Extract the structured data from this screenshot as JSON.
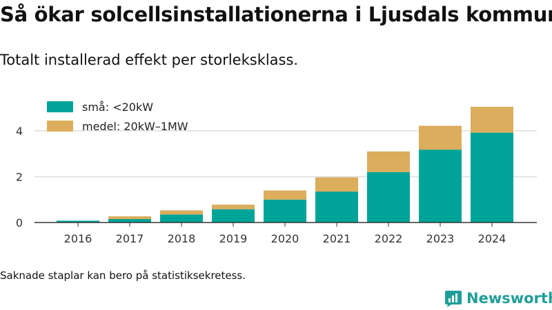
{
  "title": "Så ökar solcellsinstallationerna i Ljusdals kommun",
  "subtitle": "Totalt installerad effekt per storleksklass.",
  "note": "Saknade staplar kan bero på statistiksekretess.",
  "brand": {
    "name": "Newsworthy",
    "color": "#1f9e98",
    "icon": "newsworthy-logo-icon"
  },
  "chart_data": {
    "type": "bar",
    "stacked": true,
    "categories": [
      "2016",
      "2017",
      "2018",
      "2019",
      "2020",
      "2021",
      "2022",
      "2023",
      "2024"
    ],
    "series": [
      {
        "name": "små: <20kW",
        "color": "#00a398",
        "values": [
          0.08,
          0.15,
          0.35,
          0.58,
          1.0,
          1.35,
          2.2,
          3.18,
          3.92
        ]
      },
      {
        "name": "medel: 20kW–1MW",
        "color": "#dbad5c",
        "values": [
          0.0,
          0.12,
          0.18,
          0.2,
          0.4,
          0.62,
          0.9,
          1.04,
          1.13
        ]
      }
    ],
    "yticks": [
      0,
      2,
      4
    ],
    "ylim": [
      0,
      5.2
    ],
    "grid": true,
    "legend": "top-left",
    "xlabel": "",
    "ylabel": ""
  }
}
